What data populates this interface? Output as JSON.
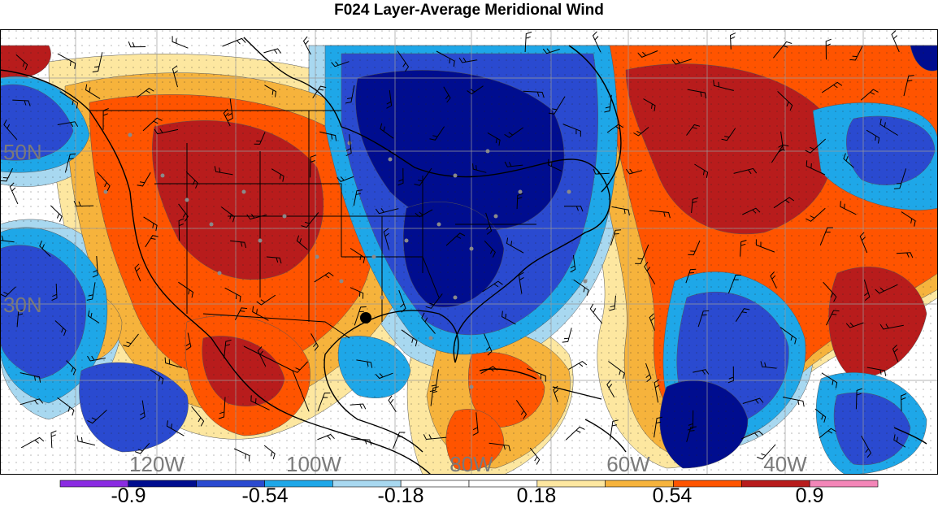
{
  "title": "F024 Layer-Average Meridional Wind",
  "map": {
    "lat_labels": [
      "50N",
      "30N"
    ],
    "lon_labels": [
      "120W",
      "100W",
      "80W",
      "60W",
      "40W"
    ],
    "colors": {
      "dark_blue": "#000d8f",
      "mid_blue": "#2a4ad0",
      "sky": "#1ea7e8",
      "pale_blue": "#a8d8f0",
      "pale_yellow": "#fde7a0",
      "yellow_orange": "#f6b33c",
      "orange": "#ff5400",
      "dark_red": "#b81c1c",
      "land_lines": "#000000",
      "grid": "#9a9a9a",
      "stations": "#8a8a8a"
    }
  },
  "colorbar": {
    "labels": [
      "-0.9",
      "-0.54",
      "-0.18",
      "0.18",
      "0.54",
      "0.9"
    ],
    "colors": [
      "#8a2be2",
      "#000d8f",
      "#2a4ad0",
      "#1ea7e8",
      "#a8d8f0",
      "#ffffff",
      "#ffffff",
      "#fde7a0",
      "#f6b33c",
      "#ff5400",
      "#b81c1c",
      "#f386b8"
    ]
  }
}
